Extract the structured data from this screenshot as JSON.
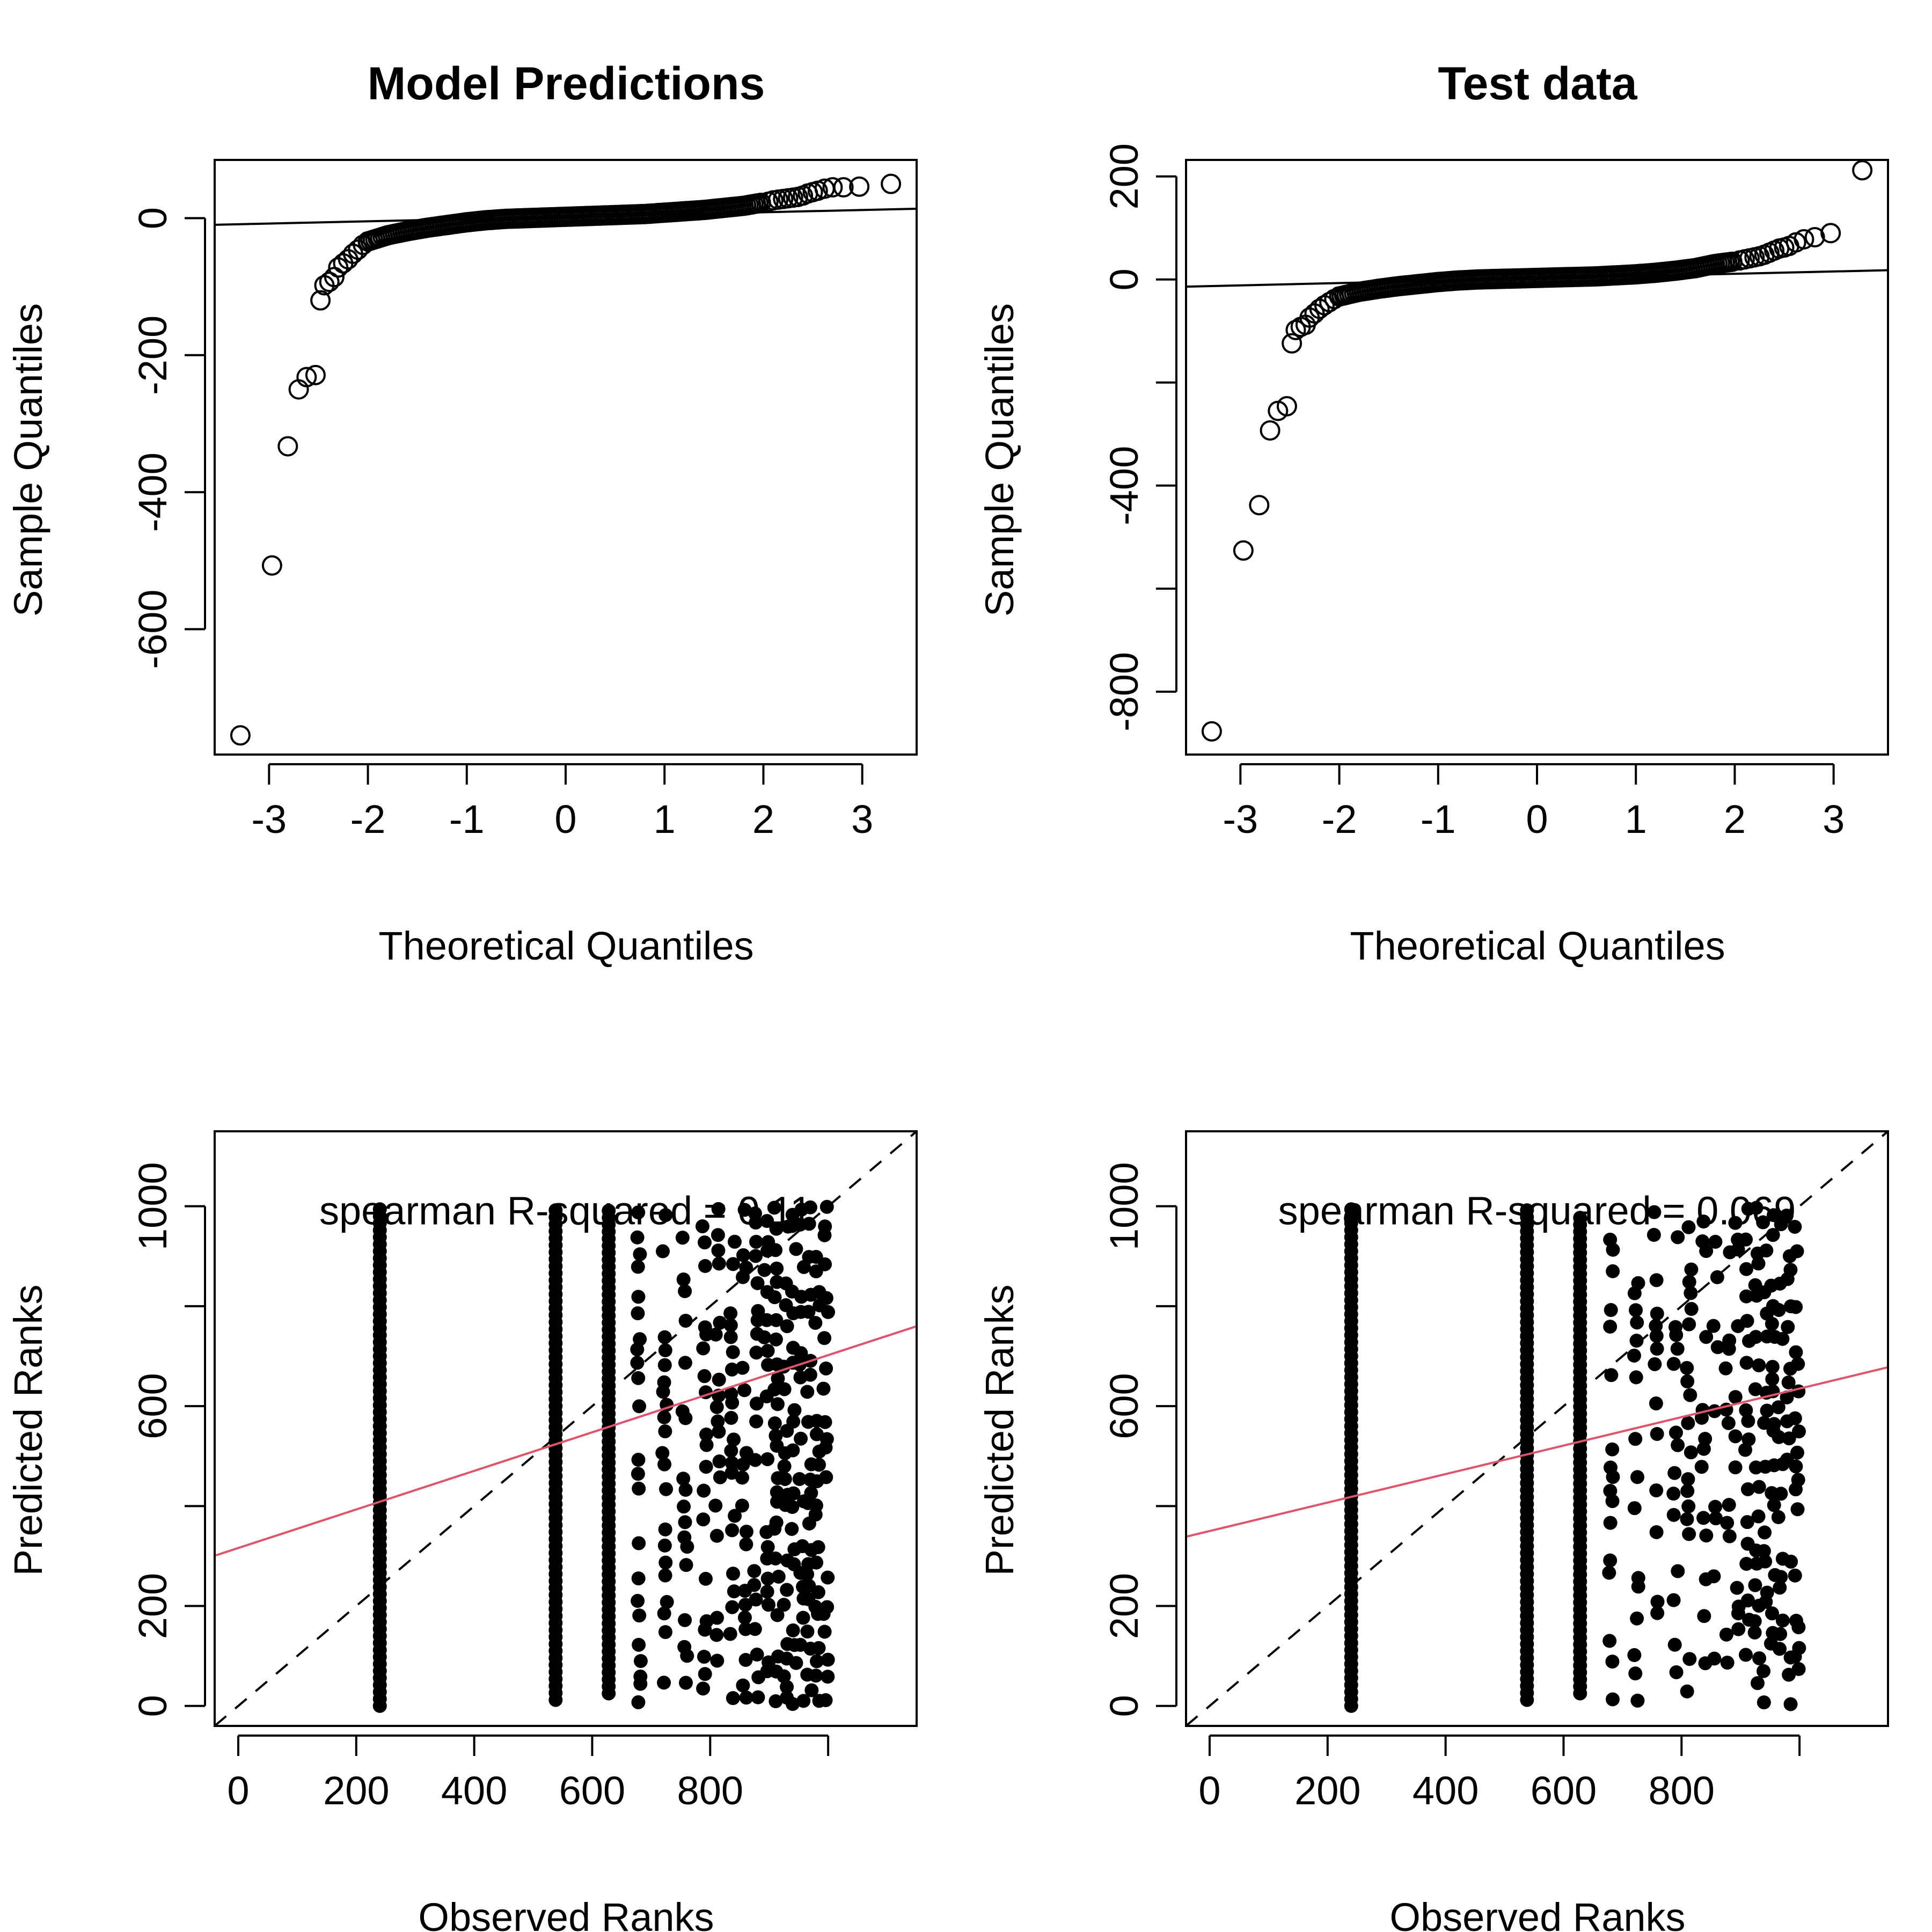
{
  "chart_data": [
    {
      "type": "scatter",
      "title": "Model Predictions",
      "xlabel": "Theoretical Quantiles",
      "ylabel": "Sample Quantiles",
      "xlim": [
        -3.55,
        3.55
      ],
      "ylim": [
        -783,
        85
      ],
      "xticks": [
        "-3",
        "-2",
        "-1",
        "0",
        "1",
        "2",
        "3"
      ],
      "yticks": [
        "-600",
        "-400",
        "-200",
        "0"
      ],
      "marker": "open-circle",
      "grid": false,
      "reference_line": {
        "intercept": 2.0,
        "slope": 3.3
      },
      "points": [
        {
          "x": -3.29,
          "y": -755
        },
        {
          "x": -2.97,
          "y": -507
        },
        {
          "x": -2.81,
          "y": -333
        },
        {
          "x": -2.7,
          "y": -250
        },
        {
          "x": -2.62,
          "y": -232
        },
        {
          "x": -2.53,
          "y": -229
        },
        {
          "x": -2.48,
          "y": -120
        },
        {
          "x": -2.44,
          "y": -98
        },
        {
          "x": -2.39,
          "y": -93
        },
        {
          "x": -2.34,
          "y": -86
        },
        {
          "x": -2.3,
          "y": -72
        },
        {
          "x": -2.25,
          "y": -66
        },
        {
          "x": -2.2,
          "y": -60
        },
        {
          "x": -2.15,
          "y": -52
        },
        {
          "x": -2.1,
          "y": -46
        },
        {
          "x": -2.05,
          "y": -39
        },
        {
          "x": -2.0,
          "y": -34
        }
      ],
      "curve_points": [
        [
          -2.0,
          -34
        ],
        [
          -1.8,
          -25
        ],
        [
          -1.6,
          -19
        ],
        [
          -1.4,
          -14
        ],
        [
          -1.2,
          -10
        ],
        [
          -1.0,
          -6
        ],
        [
          -0.8,
          -3
        ],
        [
          -0.6,
          -1
        ],
        [
          -0.4,
          0
        ],
        [
          -0.2,
          1
        ],
        [
          0.0,
          2
        ],
        [
          0.2,
          3
        ],
        [
          0.4,
          4
        ],
        [
          0.6,
          5
        ],
        [
          0.8,
          6
        ],
        [
          1.0,
          8
        ],
        [
          1.2,
          10
        ],
        [
          1.4,
          12
        ],
        [
          1.6,
          15
        ],
        [
          1.8,
          18
        ],
        [
          2.0,
          23
        ]
      ],
      "upper_points": [
        {
          "x": 2.05,
          "y": 24
        },
        {
          "x": 2.1,
          "y": 26
        },
        {
          "x": 2.15,
          "y": 27
        },
        {
          "x": 2.2,
          "y": 28
        },
        {
          "x": 2.25,
          "y": 29
        },
        {
          "x": 2.3,
          "y": 30
        },
        {
          "x": 2.35,
          "y": 31
        },
        {
          "x": 2.4,
          "y": 33
        },
        {
          "x": 2.45,
          "y": 36
        },
        {
          "x": 2.5,
          "y": 38
        },
        {
          "x": 2.55,
          "y": 40
        },
        {
          "x": 2.62,
          "y": 43
        },
        {
          "x": 2.7,
          "y": 45
        },
        {
          "x": 2.81,
          "y": 45
        },
        {
          "x": 2.97,
          "y": 46
        },
        {
          "x": 3.29,
          "y": 50
        }
      ]
    },
    {
      "type": "scatter",
      "title": "Test data",
      "xlabel": "Theoretical Quantiles",
      "ylabel": "Sample Quantiles",
      "xlim": [
        -3.55,
        3.55
      ],
      "ylim": [
        -922,
        232
      ],
      "xticks": [
        "-3",
        "-2",
        "-1",
        "0",
        "1",
        "2",
        "3"
      ],
      "yticks": [
        "-800",
        "-400",
        "0",
        "200"
      ],
      "extra_yticks": [
        -600,
        -200
      ],
      "marker": "open-circle",
      "grid": false,
      "reference_line": {
        "intercept": 2.0,
        "slope": 4.5
      },
      "points": [
        {
          "x": -3.29,
          "y": -877
        },
        {
          "x": -2.97,
          "y": -526
        },
        {
          "x": -2.81,
          "y": -438
        },
        {
          "x": -2.7,
          "y": -293
        },
        {
          "x": -2.62,
          "y": -255
        },
        {
          "x": -2.53,
          "y": -246
        },
        {
          "x": -2.48,
          "y": -124
        },
        {
          "x": -2.44,
          "y": -98
        },
        {
          "x": -2.39,
          "y": -92
        },
        {
          "x": -2.34,
          "y": -88
        },
        {
          "x": -2.3,
          "y": -74
        },
        {
          "x": -2.25,
          "y": -66
        },
        {
          "x": -2.2,
          "y": -57
        },
        {
          "x": -2.15,
          "y": -50
        },
        {
          "x": -2.1,
          "y": -44
        },
        {
          "x": -2.05,
          "y": -38
        },
        {
          "x": -2.0,
          "y": -33
        }
      ],
      "curve_points": [
        [
          -2.0,
          -33
        ],
        [
          -1.8,
          -24
        ],
        [
          -1.6,
          -18
        ],
        [
          -1.4,
          -13
        ],
        [
          -1.2,
          -9
        ],
        [
          -1.0,
          -5
        ],
        [
          -0.8,
          -2
        ],
        [
          -0.6,
          0
        ],
        [
          -0.4,
          1
        ],
        [
          -0.2,
          2
        ],
        [
          0.0,
          3
        ],
        [
          0.2,
          4
        ],
        [
          0.4,
          5
        ],
        [
          0.6,
          6
        ],
        [
          0.8,
          8
        ],
        [
          1.0,
          10
        ],
        [
          1.2,
          13
        ],
        [
          1.4,
          17
        ],
        [
          1.6,
          22
        ],
        [
          1.8,
          30
        ],
        [
          2.0,
          35
        ]
      ],
      "upper_points": [
        {
          "x": 2.05,
          "y": 37
        },
        {
          "x": 2.1,
          "y": 39
        },
        {
          "x": 2.15,
          "y": 41
        },
        {
          "x": 2.2,
          "y": 43
        },
        {
          "x": 2.25,
          "y": 45
        },
        {
          "x": 2.3,
          "y": 48
        },
        {
          "x": 2.35,
          "y": 52
        },
        {
          "x": 2.4,
          "y": 56
        },
        {
          "x": 2.45,
          "y": 60
        },
        {
          "x": 2.5,
          "y": 62
        },
        {
          "x": 2.55,
          "y": 65
        },
        {
          "x": 2.62,
          "y": 72
        },
        {
          "x": 2.7,
          "y": 78
        },
        {
          "x": 2.81,
          "y": 82
        },
        {
          "x": 2.97,
          "y": 90
        },
        {
          "x": 3.29,
          "y": 212
        }
      ]
    },
    {
      "type": "scatter",
      "xlabel": "Observed Ranks",
      "ylabel": "Predicted Ranks",
      "xlim": [
        -40,
        1150
      ],
      "ylim": [
        -40,
        1150
      ],
      "xticks": [
        "0",
        "200",
        "400",
        "600",
        "800"
      ],
      "extra_xticks": [
        1000
      ],
      "yticks": [
        "0",
        "200",
        "600",
        "1000"
      ],
      "extra_yticks": [
        400,
        800
      ],
      "marker": "filled-circle",
      "annotation": "spearman R-squared = 0.11",
      "identity_line": "dashed",
      "fit_line": {
        "intercept": 316,
        "slope": 0.386,
        "color": "#DF536B"
      },
      "columns": [
        {
          "x": 240,
          "ymin": 0,
          "ymax": 1000,
          "dense": true
        },
        {
          "x": 538,
          "ymin": 12,
          "ymax": 1000,
          "dense": true
        },
        {
          "x": 628,
          "ymin": 25,
          "ymax": 995,
          "dense": true
        }
      ],
      "sparse_columns": [
        680,
        723,
        757,
        790,
        813,
        838,
        858,
        878,
        895,
        912,
        928,
        942,
        955,
        968,
        982,
        996
      ],
      "sparse_density": 0.55,
      "seed": 11
    },
    {
      "type": "scatter",
      "xlabel": "Observed Ranks",
      "ylabel": "Predicted Ranks",
      "xlim": [
        -40,
        1150
      ],
      "ylim": [
        -40,
        1150
      ],
      "xticks": [
        "0",
        "200",
        "400",
        "600",
        "800"
      ],
      "extra_xticks": [
        1000
      ],
      "yticks": [
        "0",
        "200",
        "600",
        "1000"
      ],
      "extra_yticks": [
        400,
        800
      ],
      "marker": "filled-circle",
      "annotation": "spearman R-squared = 0.069",
      "identity_line": "dashed",
      "fit_line": {
        "intercept": 350,
        "slope": 0.285,
        "color": "#DF536B"
      },
      "columns": [
        {
          "x": 240,
          "ymin": 0,
          "ymax": 1000,
          "dense": true
        },
        {
          "x": 538,
          "ymin": 12,
          "ymax": 1000,
          "dense": true
        },
        {
          "x": 628,
          "ymin": 25,
          "ymax": 990,
          "dense": true
        }
      ],
      "sparse_columns": [
        680,
        723,
        757,
        790,
        813,
        838,
        858,
        878,
        895,
        912,
        928,
        942,
        955,
        968,
        982,
        996
      ],
      "sparse_density": 0.45,
      "seed": 29
    }
  ]
}
